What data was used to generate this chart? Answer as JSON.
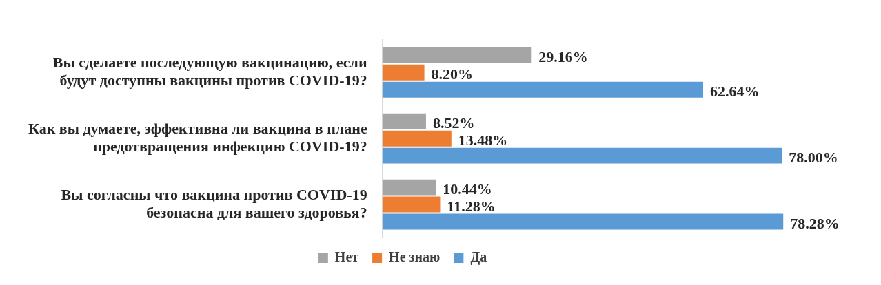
{
  "chart_data": {
    "type": "bar",
    "orientation": "horizontal",
    "categories": [
      "Вы сделаете последующую вакцинацию, если будут доступны вакцины против COVID-19?",
      "Как вы думаете, эффективна ли вакцина в плане предотвращения инфекцию COVID-19?",
      "Вы согласны что вакцина против COVID-19 безопасна для вашего здоровья?"
    ],
    "series": [
      {
        "name": "Нет",
        "color": "#a5a5a5",
        "values": [
          29.16,
          8.52,
          10.44
        ],
        "value_labels": [
          "29.16%",
          "8.52%",
          "10.44%"
        ]
      },
      {
        "name": "Не знаю",
        "color": "#ed7d31",
        "values": [
          8.2,
          13.48,
          11.28
        ],
        "value_labels": [
          "8.20%",
          "13.48%",
          "11.28%"
        ]
      },
      {
        "name": "Да",
        "color": "#5b9bd5",
        "values": [
          62.64,
          78.0,
          78.28
        ],
        "value_labels": [
          "62.64%",
          "78.00%",
          "78.28%"
        ]
      }
    ],
    "legend": "bottom"
  }
}
